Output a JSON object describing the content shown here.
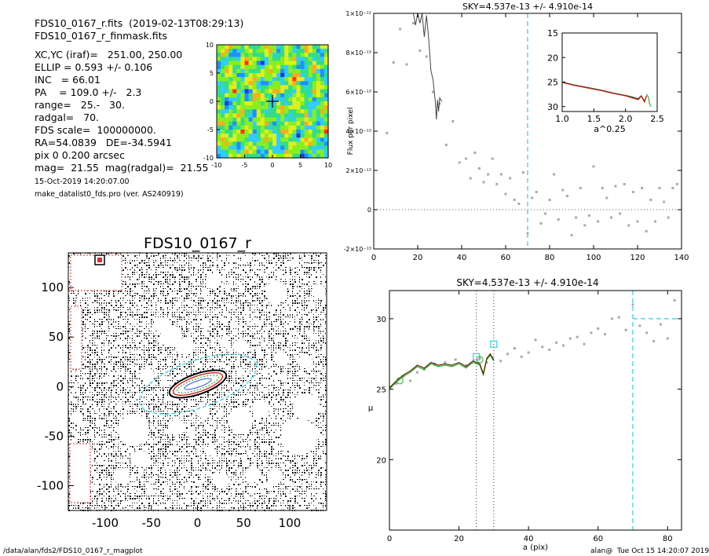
{
  "header": {
    "lines": [
      "FDS10_0167_r.fits  (2019-02-13T08:29:13)",
      "FDS10_0167_r_finmask.fits"
    ],
    "params": [
      "XC,YC (iraf)=   251.00, 250.00",
      "ELLIP = 0.593 +/- 0.106",
      "INC   = 66.01",
      "PA    = 109.0 +/-   2.3",
      "range=   25.-   30.",
      "radgal=   70.",
      "FDS scale=  100000000.",
      "RA=54.0839   DE=-34.5941",
      "pix 0 0.200 arcsec",
      "mag=  21.55  mag(radgal)=  21.55"
    ],
    "date_line": "15-Oct-2019 14:20:07.00",
    "program_line": "make_datalist0_fds.pro (ver. AS240919)"
  },
  "footer": {
    "left": "/data/alan/fds2/FDS10_0167_r_magplot",
    "right": "alan@  Tue Oct 15 14:20:07 2019"
  },
  "colors": {
    "cyan": "#33ccdd",
    "gray_points": "#aaaaaa",
    "profile_line": "#444444",
    "green": "#33aa33",
    "red": "#cc2222",
    "mask_red": "#cc3333"
  },
  "chart_data": [
    {
      "type": "heatmap",
      "panel": "residual-thumbnail",
      "xlim": [
        -10,
        10
      ],
      "ylim": [
        -10,
        10
      ],
      "x_ticks": [
        "-10",
        "-5",
        "0",
        "5",
        "10"
      ],
      "y_ticks": [
        "10",
        "5",
        "0",
        "-5",
        "-10"
      ],
      "colormap": [
        "#1a3fc8",
        "#1e90ff",
        "#33ccff",
        "#33dd88",
        "#88ee22",
        "#ddee22",
        "#ffaa22",
        "#ff3311"
      ]
    },
    {
      "type": "scatter",
      "panel": "masked-image",
      "title": "FDS10_0167_r",
      "xlim": [
        -140,
        140
      ],
      "ylim": [
        -125,
        135
      ],
      "x_ticks": [
        "-100",
        "-50",
        "0",
        "50",
        "100"
      ],
      "y_ticks": [
        "100",
        "50",
        "0",
        "-50",
        "-100"
      ]
    },
    {
      "type": "scatter",
      "panel": "sky-profile",
      "title": "SKY=4.537e-13 +/- 4.910e-14",
      "xlabel": "",
      "ylabel": "Flux per pixel",
      "xlim": [
        0,
        140
      ],
      "ylim": [
        -2e-13,
        1e-12
      ],
      "x_ticks": [
        "0",
        "20",
        "40",
        "60",
        "80",
        "100",
        "120",
        "140"
      ],
      "y_ticks": [
        "1×10⁻¹²",
        "8×10⁻¹³",
        "6×10⁻¹³",
        "4×10⁻¹³",
        "2×10⁻¹³",
        "0",
        "-2×10⁻¹³"
      ],
      "vline_x": 70,
      "points": [
        [
          6,
          3.9e-13
        ],
        [
          9,
          7.5e-13
        ],
        [
          12,
          9.2e-13
        ],
        [
          15,
          7.4e-13
        ],
        [
          18,
          9.5e-13
        ],
        [
          21,
          8.1e-13
        ],
        [
          24,
          7.8e-13
        ],
        [
          27,
          6e-13
        ],
        [
          30,
          5.4e-13
        ],
        [
          33,
          3.3e-13
        ],
        [
          36,
          4.5e-13
        ],
        [
          39,
          2.4e-13
        ],
        [
          42,
          2.6e-13
        ],
        [
          44,
          1.6e-13
        ],
        [
          46,
          2.9e-13
        ],
        [
          48,
          2.1e-13
        ],
        [
          50,
          1.4e-13
        ],
        [
          52,
          1.8e-13
        ],
        [
          54,
          2.6e-13
        ],
        [
          56,
          1.3e-13
        ],
        [
          58,
          1.8e-13
        ],
        [
          60,
          8e-14
        ],
        [
          62,
          1.6e-13
        ],
        [
          64,
          5e-14
        ],
        [
          66,
          3e-14
        ],
        [
          68,
          1.9e-13
        ],
        [
          70,
          -1.2e-13
        ],
        [
          72,
          6e-14
        ],
        [
          74,
          9e-14
        ],
        [
          76,
          -7e-14
        ],
        [
          78,
          -2e-14
        ],
        [
          80,
          5e-14
        ],
        [
          82,
          1.8e-13
        ],
        [
          84,
          -5e-14
        ],
        [
          86,
          1e-13
        ],
        [
          88,
          7e-14
        ],
        [
          90,
          -1.3e-13
        ],
        [
          92,
          -4e-14
        ],
        [
          94,
          1.1e-13
        ],
        [
          96,
          -8e-14
        ],
        [
          98,
          -3e-14
        ],
        [
          100,
          2.2e-13
        ],
        [
          102,
          -6e-14
        ],
        [
          104,
          1.1e-13
        ],
        [
          106,
          6e-14
        ],
        [
          108,
          -4e-14
        ],
        [
          110,
          1.2e-13
        ],
        [
          112,
          -2e-14
        ],
        [
          114,
          1.3e-13
        ],
        [
          116,
          -8e-14
        ],
        [
          118,
          9e-14
        ],
        [
          120,
          -6e-14
        ],
        [
          122,
          1.1e-13
        ],
        [
          124,
          -1.1e-13
        ],
        [
          126,
          5e-14
        ],
        [
          128,
          -6e-14
        ],
        [
          130,
          1.1e-13
        ],
        [
          132,
          4e-14
        ],
        [
          134,
          -4e-14
        ],
        [
          136,
          1.1e-13
        ],
        [
          138,
          1.3e-13
        ]
      ],
      "line": [
        [
          18,
          1e-12
        ],
        [
          19,
          9.4e-13
        ],
        [
          20,
          1e-12
        ],
        [
          21,
          9.5e-13
        ],
        [
          22,
          1e-12
        ],
        [
          23,
          8.8e-13
        ],
        [
          24,
          9.9e-13
        ],
        [
          25,
          8.7e-13
        ],
        [
          26,
          7.1e-13
        ],
        [
          27,
          6.6e-13
        ],
        [
          28,
          5.5e-13
        ],
        [
          28.5,
          4.6e-13
        ],
        [
          29,
          5.6e-13
        ],
        [
          29.5,
          5e-13
        ],
        [
          30,
          5.7e-13
        ],
        [
          31,
          5.5e-13
        ]
      ]
    },
    {
      "type": "line",
      "panel": "sky-profile-inset",
      "xlabel": "a^0.25",
      "xlim": [
        1.0,
        2.5
      ],
      "ylim": [
        15,
        31
      ],
      "x_ticks": [
        "1.0",
        "1.5",
        "2.0",
        "2.5"
      ],
      "y_ticks": [
        "15",
        "20",
        "25",
        "30"
      ],
      "series": [
        {
          "values": [
            [
              1.0,
              25.0
            ],
            [
              1.2,
              25.6
            ],
            [
              1.4,
              26.1
            ],
            [
              1.6,
              26.6
            ],
            [
              1.8,
              27.2
            ],
            [
              2.0,
              27.7
            ],
            [
              2.1,
              28.0
            ],
            [
              2.2,
              28.4
            ],
            [
              2.25,
              27.8
            ],
            [
              2.3,
              28.9
            ],
            [
              2.33,
              27.8
            ]
          ]
        },
        {
          "values": [
            [
              1.0,
              25.1
            ],
            [
              1.2,
              25.7
            ],
            [
              1.4,
              26.2
            ],
            [
              1.6,
              26.7
            ],
            [
              1.8,
              27.3
            ],
            [
              2.0,
              27.8
            ],
            [
              2.1,
              28.2
            ],
            [
              2.2,
              28.6
            ],
            [
              2.25,
              27.9
            ],
            [
              2.3,
              29.1
            ],
            [
              2.33,
              27.9
            ]
          ]
        },
        {
          "values": [
            [
              2.33,
              27.5
            ],
            [
              2.36,
              28.0
            ],
            [
              2.38,
              29.4
            ],
            [
              2.4,
              30.0
            ]
          ]
        }
      ]
    },
    {
      "type": "line",
      "panel": "surface-brightness-profile",
      "title": "SKY=4.537e-13 +/- 4.910e-14",
      "xlabel": "a (pix)",
      "ylabel": "μ",
      "xlim": [
        0,
        84
      ],
      "ylim": [
        32,
        15
      ],
      "x_ticks": [
        "0",
        "20",
        "40",
        "60",
        "80"
      ],
      "y_ticks": [
        "20",
        "25",
        "30"
      ],
      "vlines_dotted": [
        25,
        30
      ],
      "vline_dashed": 70,
      "sky_level_y": 30.0,
      "sky_level_x_range": [
        70,
        84
      ],
      "series": [
        {
          "values": [
            [
              0,
              25.0
            ],
            [
              2,
              25.5
            ],
            [
              4,
              25.9
            ],
            [
              6,
              26.2
            ],
            [
              8,
              26.6
            ],
            [
              10,
              26.4
            ],
            [
              12,
              26.8
            ],
            [
              14,
              26.6
            ],
            [
              16,
              26.7
            ],
            [
              18,
              26.6
            ],
            [
              20,
              26.8
            ],
            [
              22,
              26.5
            ],
            [
              24,
              26.9
            ],
            [
              26,
              26.7
            ],
            [
              27,
              26.0
            ],
            [
              28,
              27.1
            ],
            [
              29,
              27.4
            ],
            [
              30,
              27.0
            ]
          ]
        },
        {
          "values": [
            [
              0,
              25.1
            ],
            [
              2,
              25.6
            ],
            [
              4,
              26.0
            ],
            [
              6,
              26.3
            ],
            [
              8,
              26.7
            ],
            [
              10,
              26.5
            ],
            [
              12,
              26.9
            ],
            [
              14,
              26.7
            ],
            [
              16,
              26.8
            ],
            [
              18,
              26.7
            ],
            [
              20,
              26.9
            ],
            [
              22,
              26.6
            ],
            [
              24,
              27.0
            ],
            [
              26,
              26.8
            ],
            [
              27,
              26.1
            ],
            [
              28,
              27.2
            ],
            [
              29,
              27.5
            ],
            [
              30,
              27.1
            ]
          ]
        }
      ],
      "points": [
        [
          2,
          25.4
        ],
        [
          4,
          25.9
        ],
        [
          6,
          25.6
        ],
        [
          8,
          26.2
        ],
        [
          10,
          26.4
        ],
        [
          13,
          26.8
        ],
        [
          16,
          26.9
        ],
        [
          19,
          27.1
        ],
        [
          22,
          26.7
        ],
        [
          26,
          27.2
        ],
        [
          28,
          26.9
        ],
        [
          32,
          27.0
        ],
        [
          34,
          27.5
        ],
        [
          36,
          27.9
        ],
        [
          38,
          27.3
        ],
        [
          40,
          27.6
        ],
        [
          42,
          28.5
        ],
        [
          44,
          28.0
        ],
        [
          46,
          27.8
        ],
        [
          48,
          28.3
        ],
        [
          50,
          28.1
        ],
        [
          52,
          28.6
        ],
        [
          54,
          28.7
        ],
        [
          56,
          28.2
        ],
        [
          58,
          29.0
        ],
        [
          60,
          29.3
        ],
        [
          62,
          28.9
        ],
        [
          64,
          30.0
        ],
        [
          66,
          30.1
        ],
        [
          68,
          29.2
        ],
        [
          70,
          31.0
        ],
        [
          72,
          29.5
        ],
        [
          74,
          29.0
        ],
        [
          76,
          28.4
        ],
        [
          78,
          29.6
        ],
        [
          80,
          28.6
        ],
        [
          82,
          31.3
        ]
      ],
      "open_squares": [
        [
          25,
          27.3
        ],
        [
          30,
          28.2
        ]
      ],
      "green_circles": [
        [
          3,
          25.6
        ],
        [
          26,
          27.1
        ]
      ]
    }
  ]
}
